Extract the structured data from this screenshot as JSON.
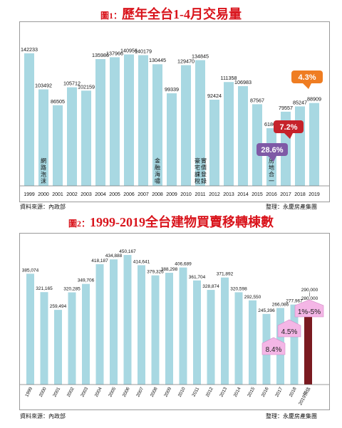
{
  "colors": {
    "title_red": "#d9141c",
    "bar_blue": "#a8d8e2",
    "bar_dark_red": "#7a1a20",
    "badge_orange": "#ef7d22",
    "badge_red": "#c6222a",
    "badge_purple": "#7f5aa6",
    "badge_pink": "#f4b6e6"
  },
  "chart1": {
    "title_prefix": "圖1：",
    "title_main": "歷年全台1-4月交易量",
    "source": "資料來源：內政部",
    "org": "整理：永慶房產集團",
    "annotations": [
      {
        "text": "網路泡沫",
        "year": "2000"
      },
      {
        "text": "金融海嘯",
        "year": "2008"
      },
      {
        "text": "豪宅課稅",
        "year": "2011"
      },
      {
        "text": "實價登錄",
        "year": "2011"
      },
      {
        "text": "房地合一",
        "year": "2016"
      }
    ],
    "badges": [
      {
        "text": "4.3%",
        "kind": "orange"
      },
      {
        "text": "7.2%",
        "kind": "red"
      },
      {
        "text": "28.6%",
        "kind": "purple"
      }
    ]
  },
  "chart2": {
    "title_prefix": "圖2：",
    "title_main": "1999-2019全台建物買賣移轉棟數",
    "source": "資料來源：內政部",
    "org": "整理：永慶房產集團",
    "range_top": "290,000",
    "range_sep": "|",
    "range_bottom": "280,000",
    "badges": [
      {
        "text": "8.4%"
      },
      {
        "text": "4.5%"
      },
      {
        "text": "1%-5%"
      }
    ]
  },
  "chart_data": [
    {
      "type": "bar",
      "title": "歷年全台1-4月交易量",
      "categories": [
        "1999",
        "2000",
        "2001",
        "2002",
        "2003",
        "2004",
        "2005",
        "2006",
        "2007",
        "2008",
        "2009",
        "2010",
        "2011",
        "2012",
        "2013",
        "2014",
        "2015",
        "2016",
        "2017",
        "2018",
        "2019"
      ],
      "values": [
        142233,
        103492,
        86505,
        105712,
        102159,
        135986,
        137966,
        140956,
        140179,
        130445,
        99339,
        129470,
        134845,
        92424,
        111358,
        106983,
        87567,
        61863,
        79557,
        85247,
        88909
      ],
      "ylim": [
        0,
        165000
      ],
      "grid": false
    },
    {
      "type": "bar",
      "title": "1999-2019全台建物買賣移轉棟數",
      "categories": [
        "1999",
        "2000",
        "2001",
        "2002",
        "2003",
        "2004",
        "2005",
        "2006",
        "2007",
        "2008",
        "2009",
        "2010",
        "2011",
        "2012",
        "2013",
        "2014",
        "2015",
        "2016",
        "2017",
        "2018",
        "2019預估"
      ],
      "values": [
        385074,
        321165,
        259494,
        320285,
        349706,
        418187,
        434888,
        450167,
        414641,
        379326,
        388298,
        406689,
        361704,
        328874,
        371892,
        320598,
        292550,
        245396,
        266086,
        277967,
        280000
      ],
      "value_labels": [
        "385,074",
        "321,165",
        "259,494",
        "320,285",
        "349,706",
        "418,187",
        "434,888",
        "450,167",
        "414,641",
        "379,326",
        "388,298",
        "406,689",
        "361,704",
        "328,874",
        "371,892",
        "320,598",
        "292,550",
        "245,396",
        "266,086",
        "277,967",
        ""
      ],
      "ylim": [
        0,
        480000
      ],
      "grid": false
    }
  ]
}
